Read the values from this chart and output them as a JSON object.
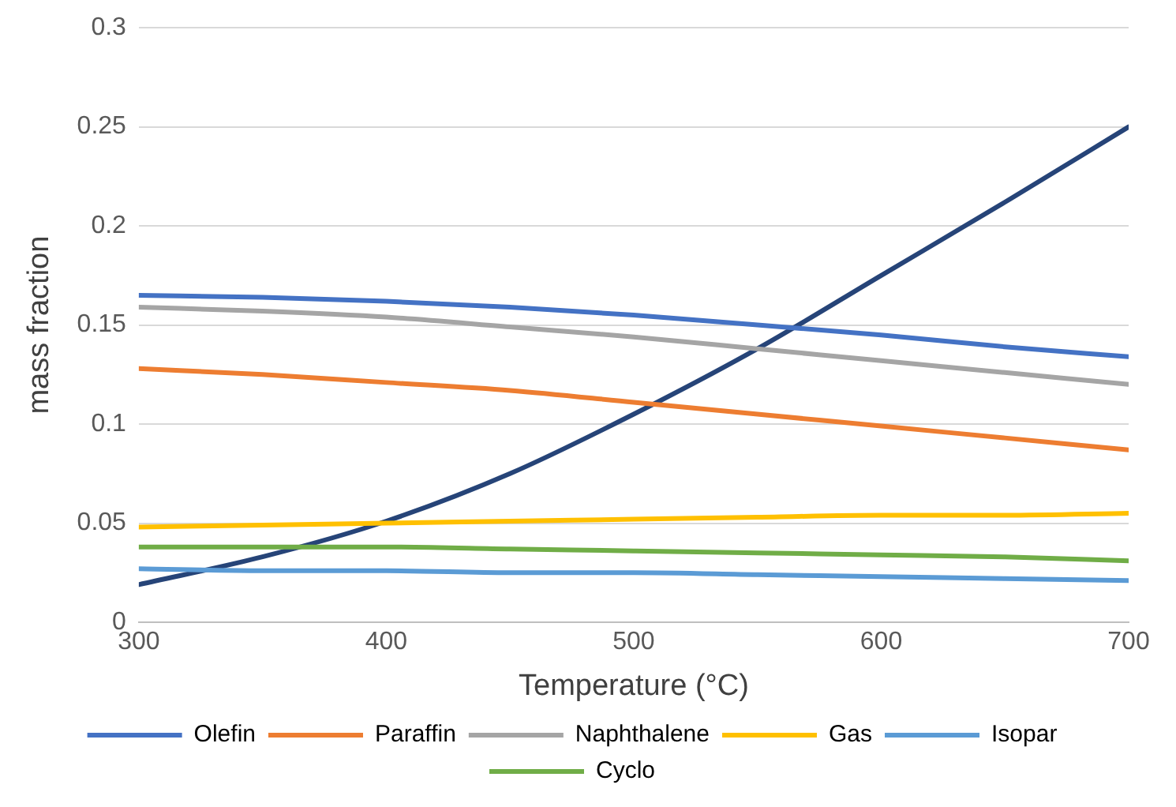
{
  "chart_data": {
    "type": "line",
    "xlabel": "Temperature (°C)",
    "ylabel": "mass fraction",
    "x": [
      300,
      350,
      400,
      450,
      500,
      550,
      600,
      650,
      700
    ],
    "xlim": [
      300,
      700
    ],
    "xticks": [
      300,
      400,
      500,
      600,
      700
    ],
    "ylim": [
      0,
      0.3
    ],
    "yticks": [
      0,
      0.05,
      0.1,
      0.15,
      0.2,
      0.25,
      0.3
    ],
    "grid": "y",
    "legend": "bottom",
    "marker": "none",
    "line_style": "solid",
    "series": [
      {
        "name": "Olefin",
        "color": "#4472c4",
        "values": [
          0.165,
          0.164,
          0.162,
          0.159,
          0.155,
          0.15,
          0.145,
          0.139,
          0.134
        ]
      },
      {
        "name": "Paraffin",
        "color": "#ed7d31",
        "values": [
          0.128,
          0.125,
          0.121,
          0.117,
          0.111,
          0.105,
          0.099,
          0.093,
          0.087
        ]
      },
      {
        "name": "Naphthalene",
        "color": "#a5a5a5",
        "values": [
          0.159,
          0.157,
          0.154,
          0.149,
          0.144,
          0.138,
          0.132,
          0.126,
          0.12
        ]
      },
      {
        "name": "Gas",
        "color": "#ffc000",
        "values": [
          0.048,
          0.049,
          0.05,
          0.051,
          0.052,
          0.053,
          0.054,
          0.054,
          0.055
        ]
      },
      {
        "name": "Isopar",
        "color": "#5b9bd5",
        "values": [
          0.027,
          0.026,
          0.026,
          0.025,
          0.025,
          0.024,
          0.023,
          0.022,
          0.021
        ]
      },
      {
        "name": "Cyclo",
        "color": "#70ad47",
        "values": [
          0.038,
          0.038,
          0.038,
          0.037,
          0.036,
          0.035,
          0.034,
          0.033,
          0.031
        ]
      },
      {
        "color": "#264478",
        "values": [
          0.019,
          0.033,
          0.051,
          0.075,
          0.105,
          0.138,
          0.175,
          0.212,
          0.25
        ]
      }
    ]
  }
}
